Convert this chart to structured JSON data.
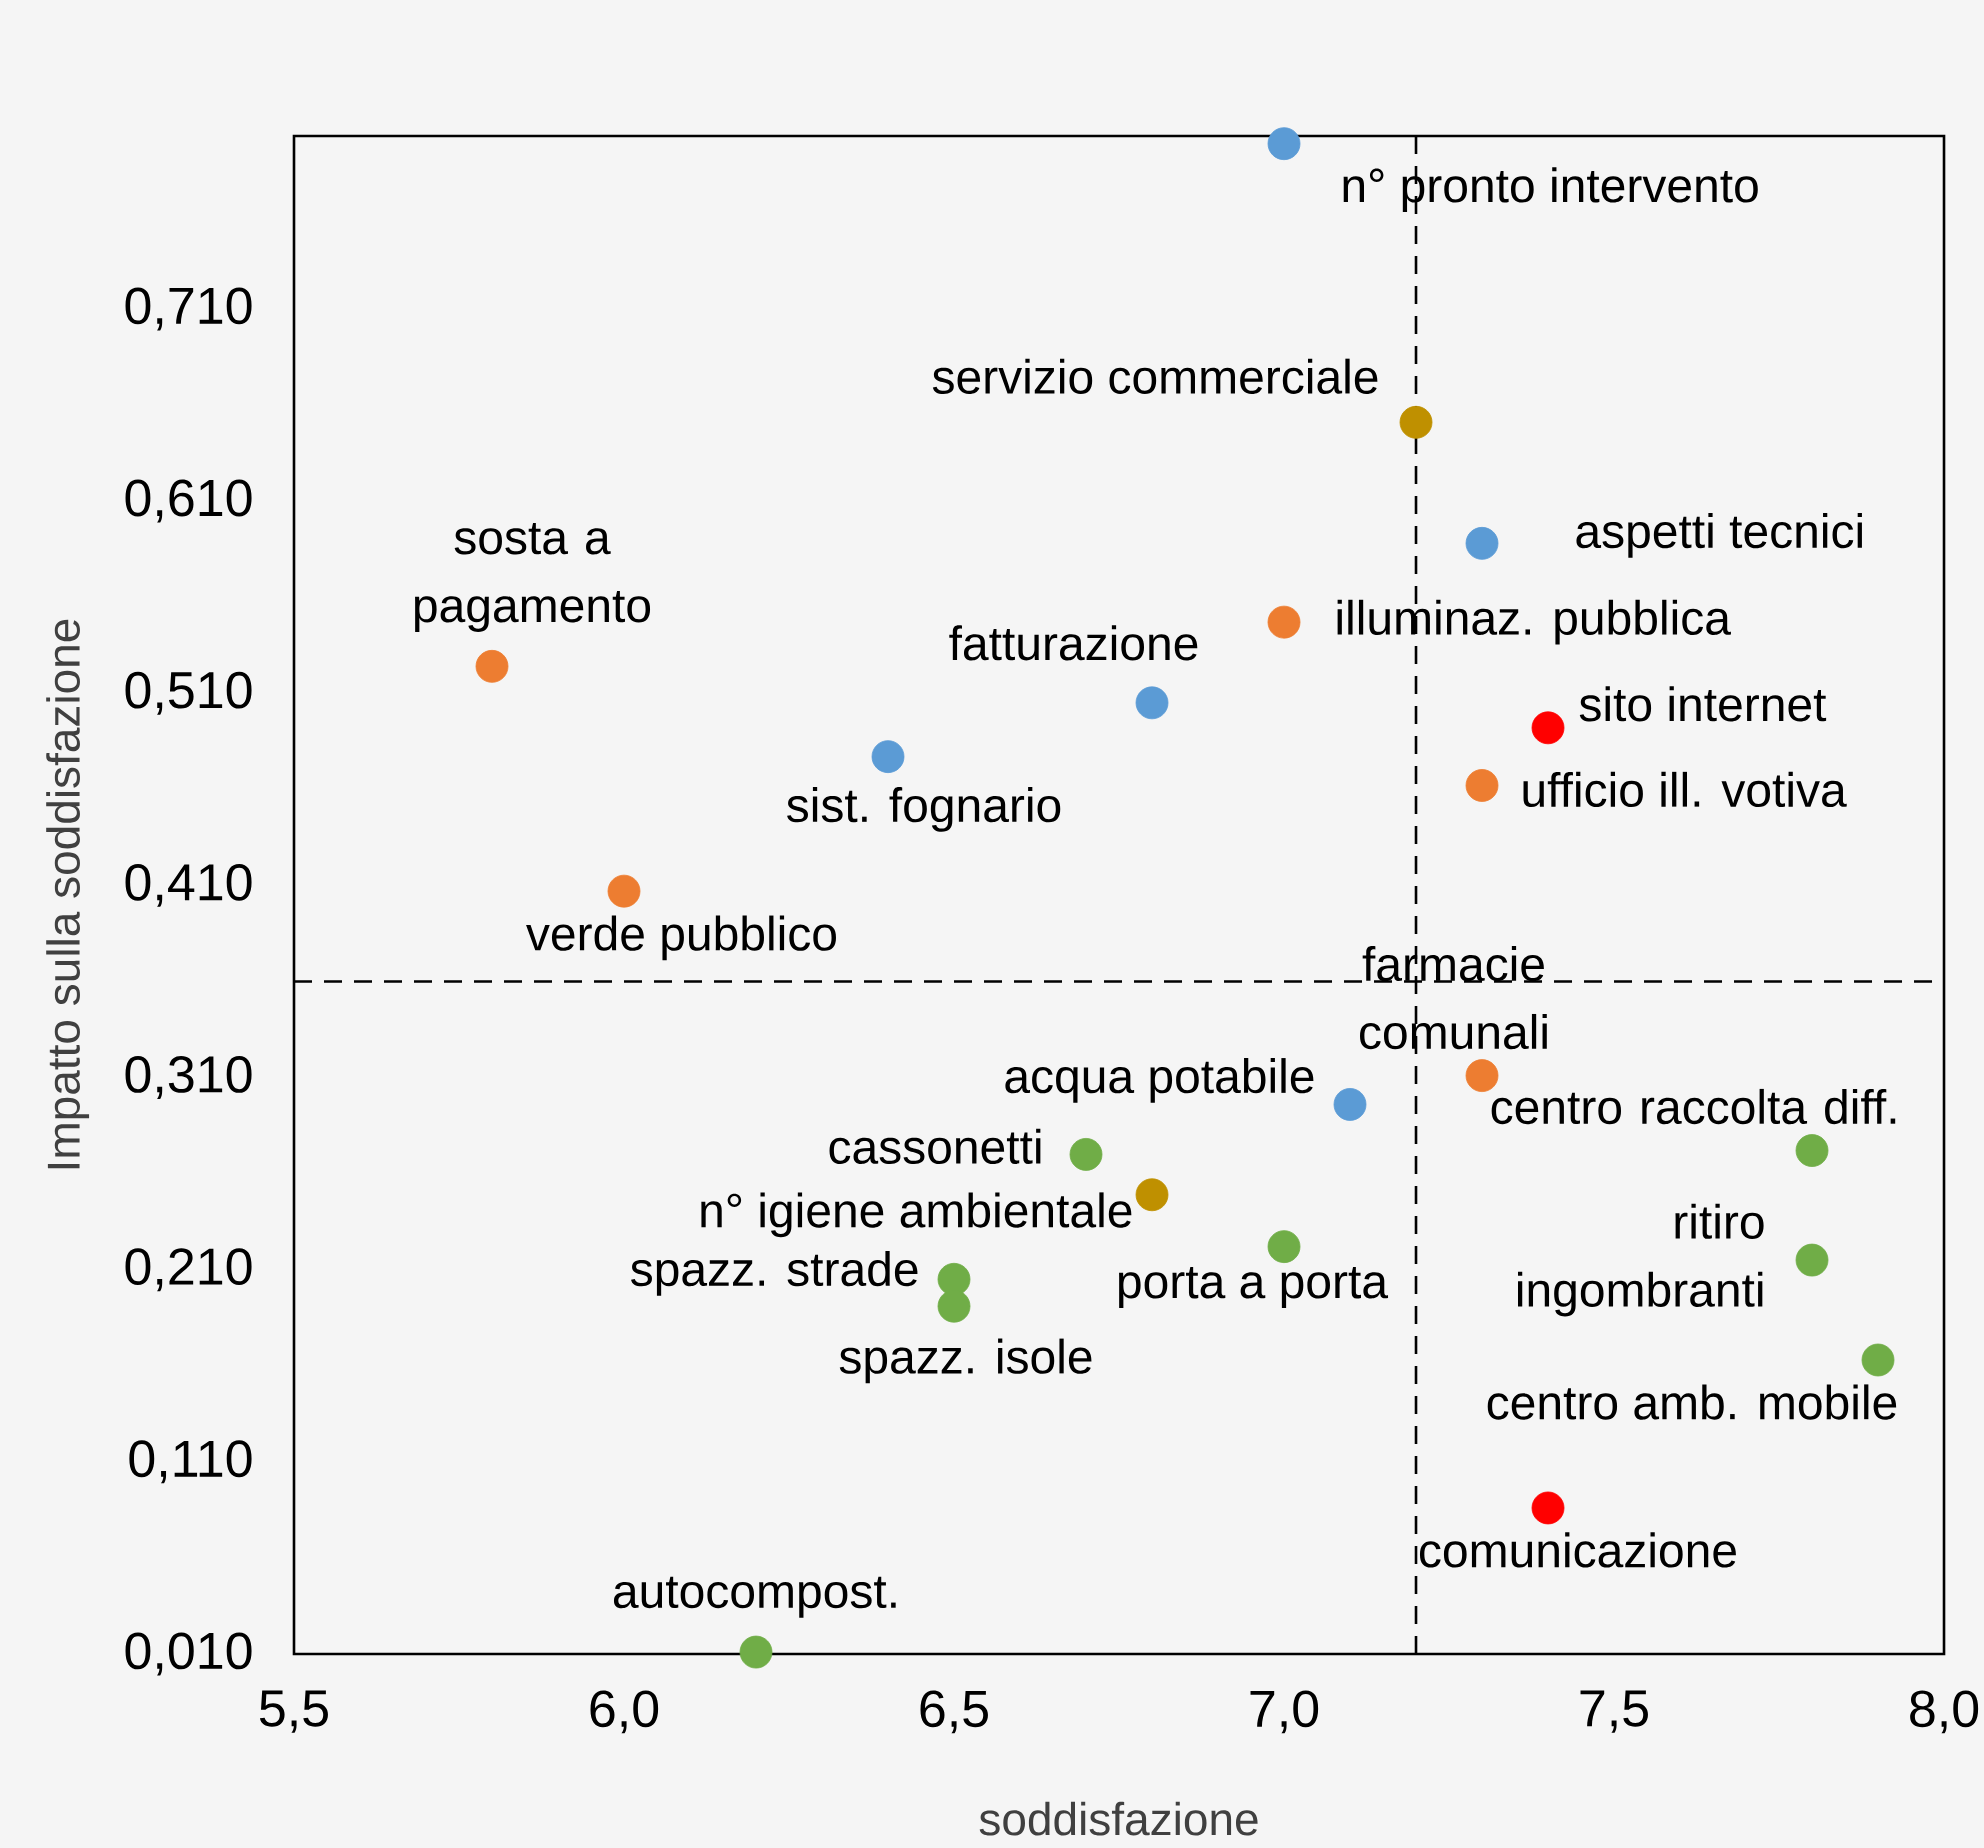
{
  "chart_data": {
    "type": "scatter",
    "xlabel": "soddisfazione",
    "ylabel": "Impatto sulla soddisfazione",
    "xlim": [
      5.5,
      8.0
    ],
    "ylim": [
      0.01,
      0.8
    ],
    "xticks": [
      {
        "value": 5.5,
        "label": "5,5"
      },
      {
        "value": 6.0,
        "label": "6,0"
      },
      {
        "value": 6.5,
        "label": "6,5"
      },
      {
        "value": 7.0,
        "label": "7,0"
      },
      {
        "value": 7.5,
        "label": "7,5"
      },
      {
        "value": 8.0,
        "label": "8,0"
      }
    ],
    "yticks": [
      {
        "value": 0.01,
        "label": "0,010"
      },
      {
        "value": 0.11,
        "label": "0,110"
      },
      {
        "value": 0.21,
        "label": "0,210"
      },
      {
        "value": 0.31,
        "label": "0,310"
      },
      {
        "value": 0.41,
        "label": "0,410"
      },
      {
        "value": 0.51,
        "label": "0,510"
      },
      {
        "value": 0.61,
        "label": "0,610"
      },
      {
        "value": 0.71,
        "label": "0,710"
      }
    ],
    "marker": "circle",
    "series": [
      {
        "x": [
          7.0,
          7.2,
          7.3,
          7.0,
          5.8,
          6.8,
          7.4,
          6.4,
          7.3,
          6.0,
          7.3,
          7.1,
          6.7,
          7.8,
          6.8,
          7.0,
          7.8,
          6.5,
          6.5,
          7.9,
          7.4,
          6.2
        ],
        "values": [
          0.796,
          0.651,
          0.588,
          0.547,
          0.524,
          0.505,
          0.492,
          0.477,
          0.462,
          0.407,
          0.311,
          0.296,
          0.27,
          0.272,
          0.249,
          0.222,
          0.215,
          0.205,
          0.191,
          0.163,
          0.086,
          0.011
        ],
        "colors": [
          "#5b9bd5",
          "#bf9000",
          "#5b9bd5",
          "#ed7d31",
          "#ed7d31",
          "#5b9bd5",
          "#ff0000",
          "#5b9bd5",
          "#ed7d31",
          "#ed7d31",
          "#ed7d31",
          "#5b9bd5",
          "#70ad47",
          "#70ad47",
          "#bf9000",
          "#70ad47",
          "#70ad47",
          "#70ad47",
          "#70ad47",
          "#70ad47",
          "#ff0000",
          "#70ad47"
        ]
      }
    ],
    "ref_lines": [
      {
        "axis": "x",
        "value": 7.2,
        "line_style": "dashed"
      },
      {
        "axis": "y",
        "value": 0.36,
        "line_style": "dashed"
      }
    ],
    "annotations": [
      {
        "text": "n° pronto intervento",
        "x": 7.0,
        "y": 0.796
      },
      {
        "text": "servizio commerciale",
        "x": 7.2,
        "y": 0.651
      },
      {
        "text": "aspetti tecnici",
        "x": 7.3,
        "y": 0.588
      },
      {
        "text": "illuminaz. pubblica",
        "x": 7.0,
        "y": 0.547
      },
      {
        "text": "sosta a pagamento",
        "x": 5.8,
        "y": 0.524
      },
      {
        "text": "fatturazione",
        "x": 6.8,
        "y": 0.505
      },
      {
        "text": "sito internet",
        "x": 7.4,
        "y": 0.492
      },
      {
        "text": "sist. fognario",
        "x": 6.4,
        "y": 0.477
      },
      {
        "text": "ufficio ill. votiva",
        "x": 7.3,
        "y": 0.462
      },
      {
        "text": "verde pubblico",
        "x": 6.0,
        "y": 0.407
      },
      {
        "text": "farmacie comunali",
        "x": 7.3,
        "y": 0.311
      },
      {
        "text": "acqua potabile",
        "x": 7.1,
        "y": 0.296
      },
      {
        "text": "cassonetti",
        "x": 6.7,
        "y": 0.27
      },
      {
        "text": "centro raccolta diff.",
        "x": 7.8,
        "y": 0.272
      },
      {
        "text": "n° igiene ambientale",
        "x": 6.8,
        "y": 0.249
      },
      {
        "text": "porta a porta",
        "x": 7.0,
        "y": 0.222
      },
      {
        "text": "ritiro ingombranti",
        "x": 7.8,
        "y": 0.215
      },
      {
        "text": "spazz. strade",
        "x": 6.5,
        "y": 0.205
      },
      {
        "text": "spazz. isole",
        "x": 6.5,
        "y": 0.191
      },
      {
        "text": "centro amb. mobile",
        "x": 7.9,
        "y": 0.163
      },
      {
        "text": "comunicazione",
        "x": 7.4,
        "y": 0.086
      },
      {
        "text": "autocompost.",
        "x": 6.2,
        "y": 0.011
      }
    ]
  }
}
